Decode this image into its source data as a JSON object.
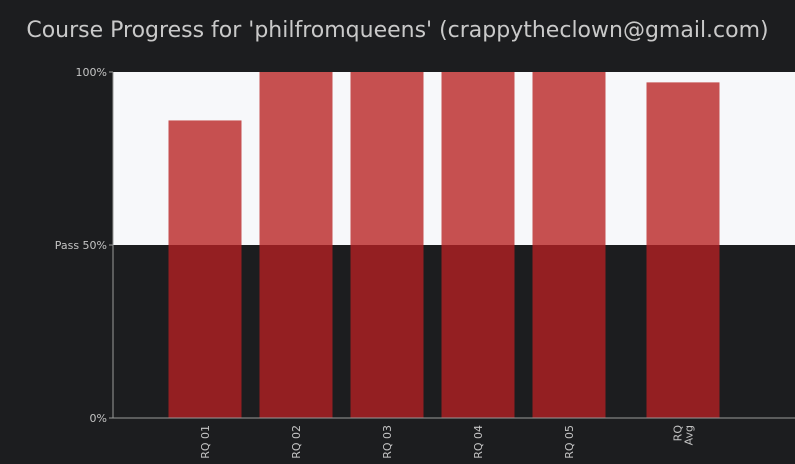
{
  "chart_data": {
    "type": "bar",
    "title": "Course Progress for 'philfromqueens' (crappytheclown@gmail.com)",
    "categories": [
      [
        "RQ 01"
      ],
      [
        "RQ 02"
      ],
      [
        "RQ 03"
      ],
      [
        "RQ 04"
      ],
      [
        "RQ 05"
      ],
      [
        "RQ",
        "Avg"
      ]
    ],
    "values": [
      86,
      100,
      100,
      100,
      100,
      97
    ],
    "ylim": [
      0,
      100
    ],
    "y_ticks": [
      {
        "value": 0,
        "label": "0%"
      },
      {
        "value": 50,
        "label": "Pass 50%"
      },
      {
        "value": 100,
        "label": "100%"
      }
    ],
    "pass_threshold": 50,
    "colors": {
      "bar_above_pass": "#c65050",
      "bar_below_pass": "#941f22",
      "band_above_pass": "#f7f8fa",
      "band_below_pass": "#1c1d1f",
      "axis": "#9a9a9a",
      "text": "#c4c4c4"
    }
  }
}
